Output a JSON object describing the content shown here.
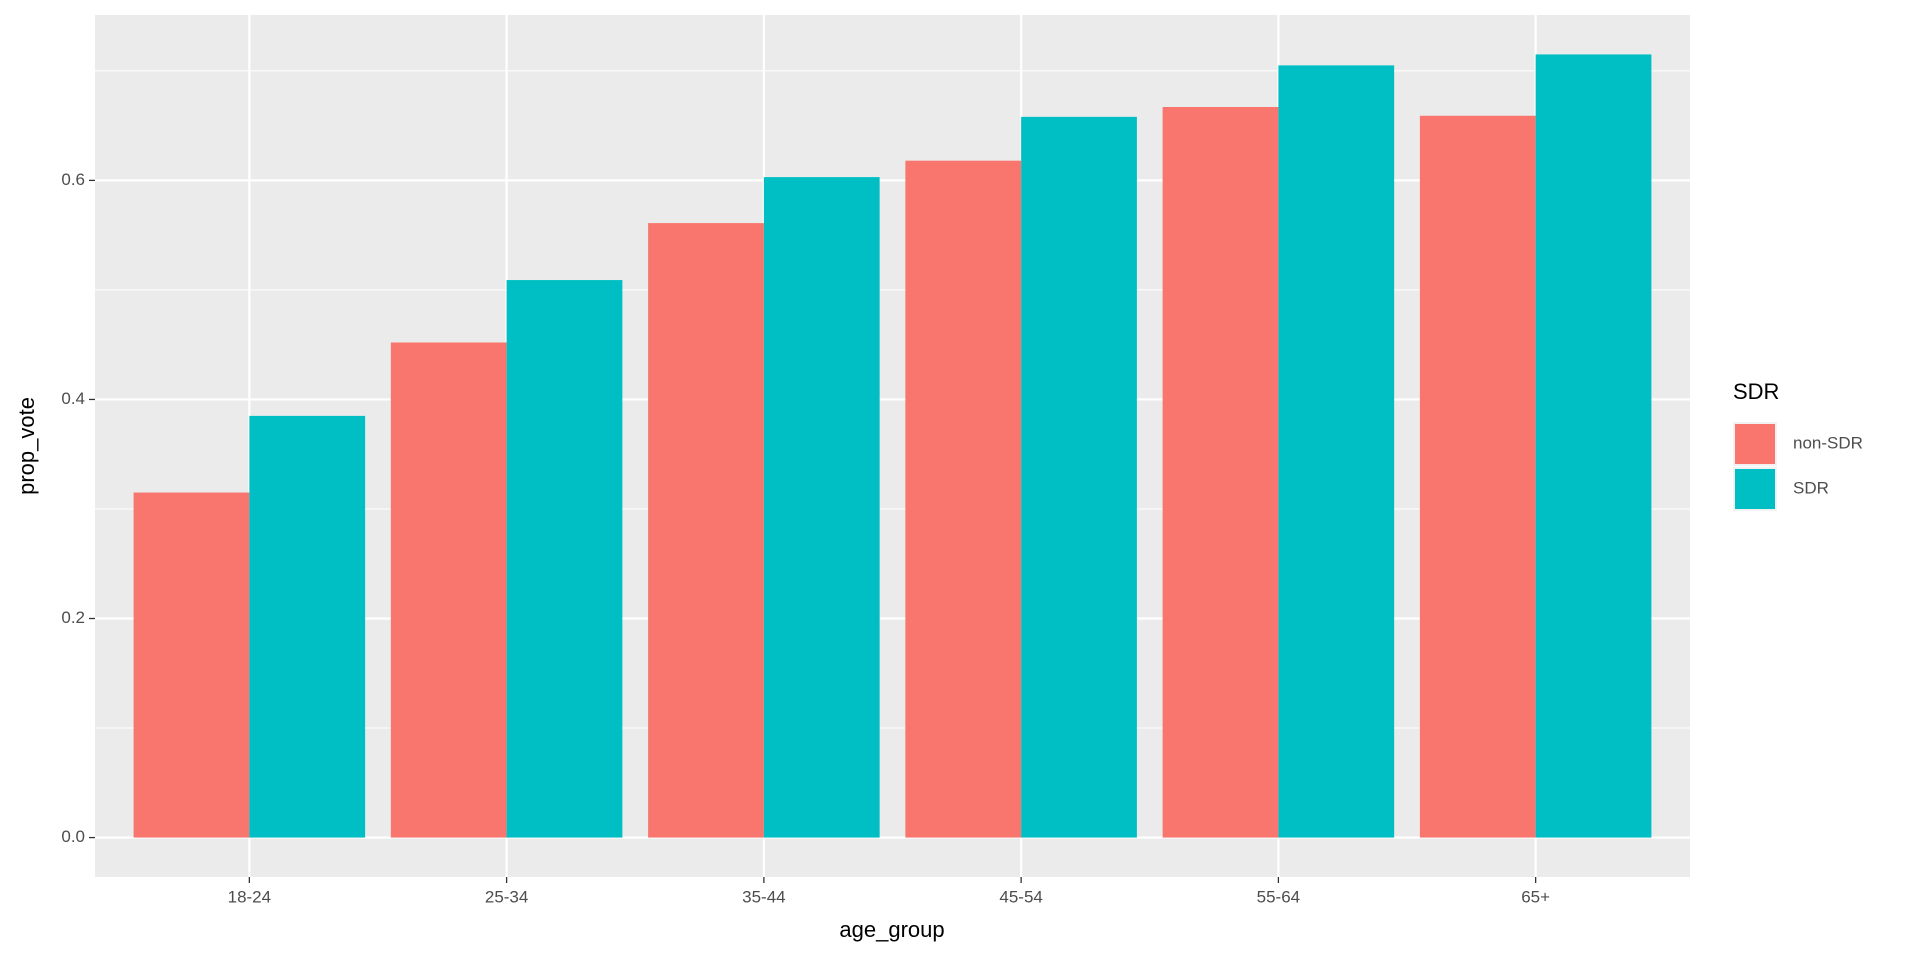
{
  "chart_data": {
    "type": "bar",
    "x_label": "age_group",
    "y_label": "prop_vote",
    "legend_title": "SDR",
    "categories": [
      "18-24",
      "25-34",
      "35-44",
      "45-54",
      "55-64",
      "65+"
    ],
    "series": [
      {
        "name": "non-SDR",
        "color": "#F8766D",
        "values": [
          0.315,
          0.452,
          0.561,
          0.618,
          0.667,
          0.659
        ]
      },
      {
        "name": "SDR",
        "color": "#00BFC4",
        "values": [
          0.385,
          0.509,
          0.603,
          0.658,
          0.705,
          0.715
        ]
      }
    ],
    "ylim": [
      -0.036,
      0.751
    ],
    "yticks": [
      {
        "value": 0,
        "label": "0.0"
      },
      0.2,
      0.4,
      0.6
    ],
    "grid": true,
    "legend": "right"
  }
}
